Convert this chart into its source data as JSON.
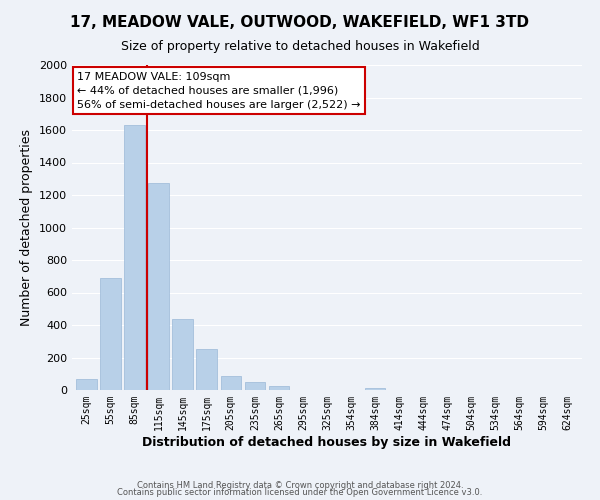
{
  "title": "17, MEADOW VALE, OUTWOOD, WAKEFIELD, WF1 3TD",
  "subtitle": "Size of property relative to detached houses in Wakefield",
  "xlabel": "Distribution of detached houses by size in Wakefield",
  "ylabel": "Number of detached properties",
  "bar_labels": [
    "25sqm",
    "55sqm",
    "85sqm",
    "115sqm",
    "145sqm",
    "175sqm",
    "205sqm",
    "235sqm",
    "265sqm",
    "295sqm",
    "325sqm",
    "354sqm",
    "384sqm",
    "414sqm",
    "444sqm",
    "474sqm",
    "504sqm",
    "534sqm",
    "564sqm",
    "594sqm",
    "624sqm"
  ],
  "bar_values": [
    65,
    690,
    1630,
    1275,
    435,
    255,
    88,
    50,
    25,
    0,
    0,
    0,
    15,
    0,
    0,
    0,
    0,
    0,
    0,
    0,
    0
  ],
  "bar_color": "#b8d0e8",
  "bar_edge_color": "#9ab8d8",
  "vline_color": "#cc0000",
  "vline_x_index": 2.5,
  "annotation_title": "17 MEADOW VALE: 109sqm",
  "annotation_line1": "← 44% of detached houses are smaller (1,996)",
  "annotation_line2": "56% of semi-detached houses are larger (2,522) →",
  "annotation_box_facecolor": "#ffffff",
  "annotation_box_edgecolor": "#cc0000",
  "ylim": [
    0,
    2000
  ],
  "yticks": [
    0,
    200,
    400,
    600,
    800,
    1000,
    1200,
    1400,
    1600,
    1800,
    2000
  ],
  "footer1": "Contains HM Land Registry data © Crown copyright and database right 2024.",
  "footer2": "Contains public sector information licensed under the Open Government Licence v3.0.",
  "bg_color": "#eef2f8",
  "plot_bg_color": "#eef2f8",
  "grid_color": "#ffffff",
  "title_fontsize": 11,
  "subtitle_fontsize": 9,
  "xlabel_fontsize": 9,
  "ylabel_fontsize": 9,
  "tick_fontsize": 8,
  "xtick_fontsize": 7,
  "footer_fontsize": 6,
  "ann_fontsize": 8
}
